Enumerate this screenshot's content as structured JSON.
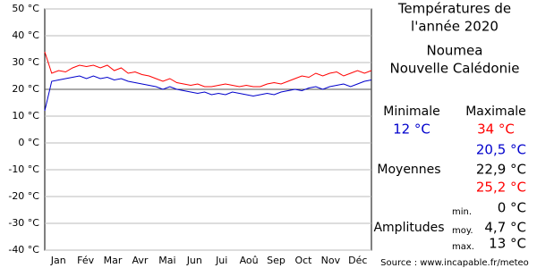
{
  "chart_data": {
    "type": "line",
    "x_labels": [
      "Jan",
      "Fév",
      "Mar",
      "Avr",
      "Mai",
      "Jun",
      "Jui",
      "Aoû",
      "Sep",
      "Oct",
      "Nov",
      "Déc"
    ],
    "ylim": [
      -40,
      50
    ],
    "yticks": [
      {
        "value": 50,
        "label": "50 °C"
      },
      {
        "value": 40,
        "label": "40 °C"
      },
      {
        "value": 30,
        "label": "30 °C"
      },
      {
        "value": 20,
        "label": "20 °C"
      },
      {
        "value": 10,
        "label": "10 °C"
      },
      {
        "value": 0,
        "label": "0 °C"
      },
      {
        "value": -10,
        "label": "-10 °C"
      },
      {
        "value": -20,
        "label": "-20 °C"
      },
      {
        "value": -30,
        "label": "-30 °C"
      },
      {
        "value": -40,
        "label": "-40 °C"
      }
    ],
    "grid": true,
    "series": [
      {
        "color": "#0000cc",
        "values": [
          12,
          23,
          23.5,
          24,
          24.5,
          25,
          24,
          25,
          24,
          24.5,
          23.5,
          24,
          23,
          22.5,
          22,
          21.5,
          21,
          20,
          21,
          20,
          19.5,
          19,
          18.5,
          19,
          18,
          18.5,
          18,
          19,
          18.5,
          18,
          17.5,
          18,
          18.5,
          18,
          19,
          19.5,
          20,
          19.5,
          20.5,
          21,
          20,
          21,
          21.5,
          22,
          21,
          22,
          23,
          23.5
        ]
      },
      {
        "color": "#ff0000",
        "values": [
          34,
          26,
          27,
          26.5,
          28,
          29,
          28.5,
          29,
          28,
          29,
          27,
          28,
          26,
          26.5,
          25.5,
          25,
          24,
          23,
          24,
          22.5,
          22,
          21.5,
          22,
          21,
          21,
          21.5,
          22,
          21.5,
          21,
          21.5,
          21,
          21,
          22,
          22.5,
          22,
          23,
          24,
          25,
          24.5,
          26,
          25,
          26,
          26.5,
          25,
          26,
          27,
          26,
          27
        ]
      }
    ]
  },
  "panel": {
    "title": [
      "Températures de",
      "l'année 2020"
    ],
    "city": "Noumea",
    "country": "Nouvelle Calédonie",
    "min_label": "Minimale",
    "max_label": "Maximale",
    "min_value": "12 °C",
    "max_value": "34 °C",
    "means_label": "Moyennes",
    "means": [
      "20,5 °C",
      "22,9 °C",
      "25,2 °C"
    ],
    "amplitudes_label": "Amplitudes",
    "amplitudes": [
      {
        "label": "min.",
        "value": "0 °C"
      },
      {
        "label": "moy.",
        "value": "4,7 °C"
      },
      {
        "label": "max.",
        "value": "13 °C"
      }
    ],
    "source": "Source : www.incapable.fr/meteo"
  }
}
